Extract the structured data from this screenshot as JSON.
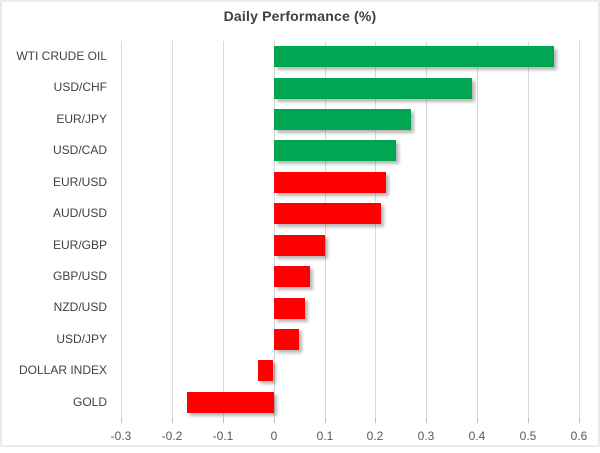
{
  "chart_data": {
    "type": "bar",
    "orientation": "horizontal",
    "title": "Daily Performance (%)",
    "categories": [
      "WTI CRUDE OIL",
      "USD/CHF",
      "EUR/JPY",
      "USD/CAD",
      "EUR/USD",
      "AUD/USD",
      "EUR/GBP",
      "GBP/USD",
      "NZD/USD",
      "USD/JPY",
      "DOLLAR INDEX",
      "GOLD"
    ],
    "values": [
      0.55,
      0.39,
      0.27,
      0.24,
      0.22,
      0.21,
      0.1,
      0.07,
      0.06,
      0.05,
      -0.03,
      -0.17
    ],
    "bar_colors": [
      "#00A651",
      "#00A651",
      "#00A651",
      "#00A651",
      "#FF0000",
      "#FF0000",
      "#FF0000",
      "#FF0000",
      "#FF0000",
      "#FF0000",
      "#FF0000",
      "#FF0000"
    ],
    "xlim": [
      -0.3,
      0.6
    ],
    "x_ticks": [
      -0.3,
      -0.2,
      -0.1,
      0,
      0.1,
      0.2,
      0.3,
      0.4,
      0.5,
      0.6
    ],
    "x_tick_labels": [
      "-0.3",
      "-0.2",
      "-0.1",
      "0",
      "0.1",
      "0.2",
      "0.3",
      "0.4",
      "0.5",
      "0.6"
    ],
    "grid": true,
    "legend_position": "none",
    "colors": {
      "positive_green": "#00A651",
      "negative_red": "#FF0000",
      "gridline": "#d9d9d9",
      "title_text": "#404040",
      "axis_text": "#595959"
    }
  }
}
